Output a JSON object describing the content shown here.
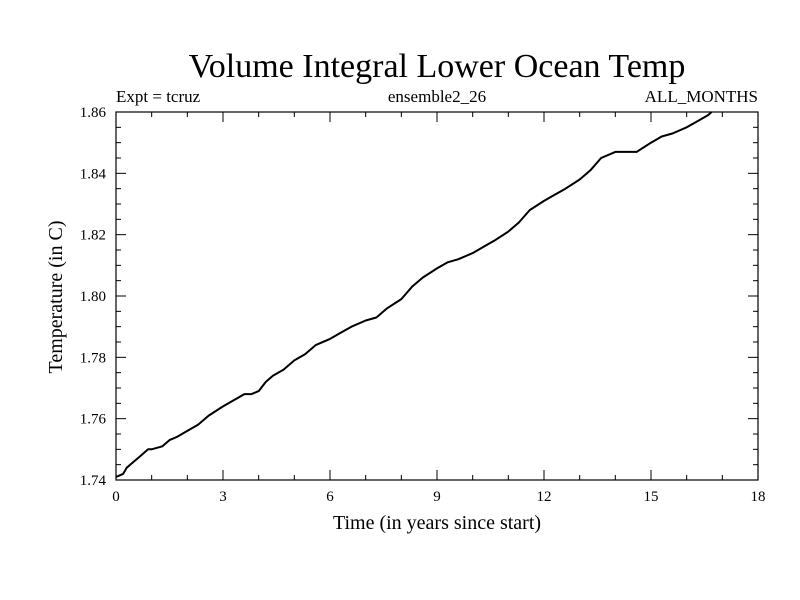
{
  "chart_data": {
    "type": "line",
    "title": "Volume Integral Lower Ocean Temp",
    "subtitle_left": "Expt = tcruz",
    "subtitle_center": "ensemble2_26",
    "subtitle_right": "ALL_MONTHS",
    "xlabel": "Time (in years since start)",
    "ylabel": "Temperature (in C)",
    "xlim": [
      0,
      18
    ],
    "ylim": [
      1.74,
      1.86
    ],
    "xticks": [
      0,
      3,
      6,
      9,
      12,
      15,
      18
    ],
    "xtick_labels": [
      "0",
      "3",
      "6",
      "9",
      "12",
      "15",
      "18"
    ],
    "yticks": [
      1.74,
      1.76,
      1.78,
      1.8,
      1.82,
      1.84,
      1.86
    ],
    "ytick_labels": [
      "1.74",
      "1.76",
      "1.78",
      "1.80",
      "1.82",
      "1.84",
      "1.86"
    ],
    "grid": false,
    "legend": "none",
    "line_color": "#000000",
    "series": [
      {
        "x": [
          0.0,
          0.2,
          0.3,
          0.5,
          0.7,
          0.9,
          1.0,
          1.3,
          1.5,
          1.7,
          2.0,
          2.3,
          2.6,
          3.0,
          3.3,
          3.6,
          3.8,
          4.0,
          4.2,
          4.4,
          4.7,
          5.0,
          5.3,
          5.6,
          6.0,
          6.3,
          6.6,
          7.0,
          7.3,
          7.6,
          8.0,
          8.3,
          8.6,
          9.0,
          9.3,
          9.6,
          10.0,
          10.3,
          10.6,
          11.0,
          11.3,
          11.6,
          12.0,
          12.3,
          12.6,
          13.0,
          13.3,
          13.6,
          14.0,
          14.3,
          14.6,
          15.0,
          15.3,
          15.6,
          16.0,
          16.3,
          16.6,
          16.7
        ],
        "y": [
          1.741,
          1.742,
          1.744,
          1.746,
          1.748,
          1.75,
          1.75,
          1.751,
          1.753,
          1.754,
          1.756,
          1.758,
          1.761,
          1.764,
          1.766,
          1.768,
          1.768,
          1.769,
          1.772,
          1.774,
          1.776,
          1.779,
          1.781,
          1.784,
          1.786,
          1.788,
          1.79,
          1.792,
          1.793,
          1.796,
          1.799,
          1.803,
          1.806,
          1.809,
          1.811,
          1.812,
          1.814,
          1.816,
          1.818,
          1.821,
          1.824,
          1.828,
          1.831,
          1.833,
          1.835,
          1.838,
          1.841,
          1.845,
          1.847,
          1.847,
          1.847,
          1.85,
          1.852,
          1.853,
          1.855,
          1.857,
          1.859,
          1.86
        ]
      }
    ]
  }
}
